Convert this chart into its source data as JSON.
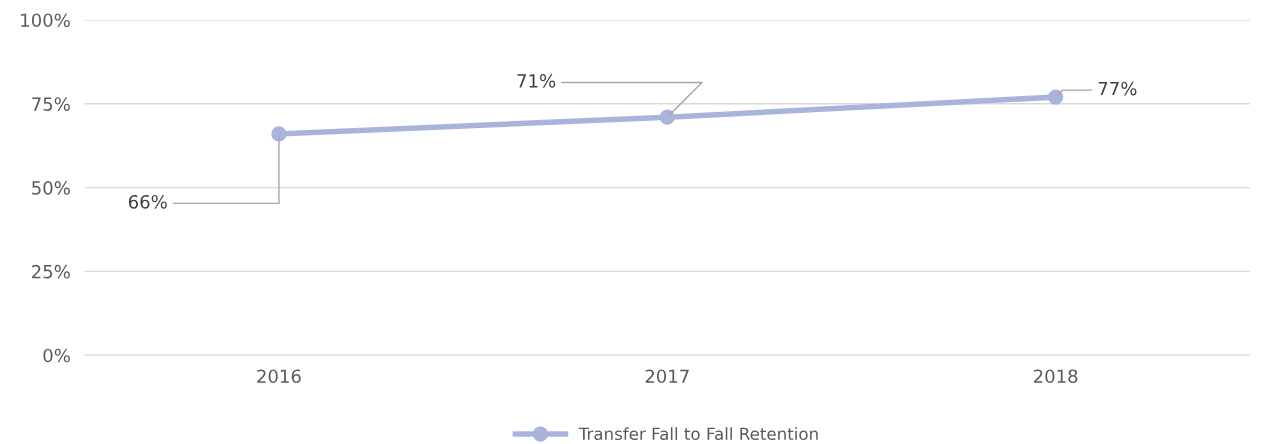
{
  "chart_data": {
    "type": "line",
    "categories": [
      "2016",
      "2017",
      "2018"
    ],
    "series": [
      {
        "name": "Transfer Fall to Fall Retention",
        "color": "#a9b4dc",
        "values": [
          66,
          71,
          77
        ],
        "value_labels": [
          "66%",
          "71%",
          "77%"
        ]
      }
    ],
    "ylim": [
      0,
      100
    ],
    "yticks": [
      {
        "value": 0,
        "label": "0%"
      },
      {
        "value": 25,
        "label": "25%"
      },
      {
        "value": 50,
        "label": "50%"
      },
      {
        "value": 75,
        "label": "75%"
      },
      {
        "value": 100,
        "label": "100%"
      }
    ],
    "grid": "y",
    "legend": "bottom",
    "marker": "circle",
    "line_style": "solid"
  }
}
